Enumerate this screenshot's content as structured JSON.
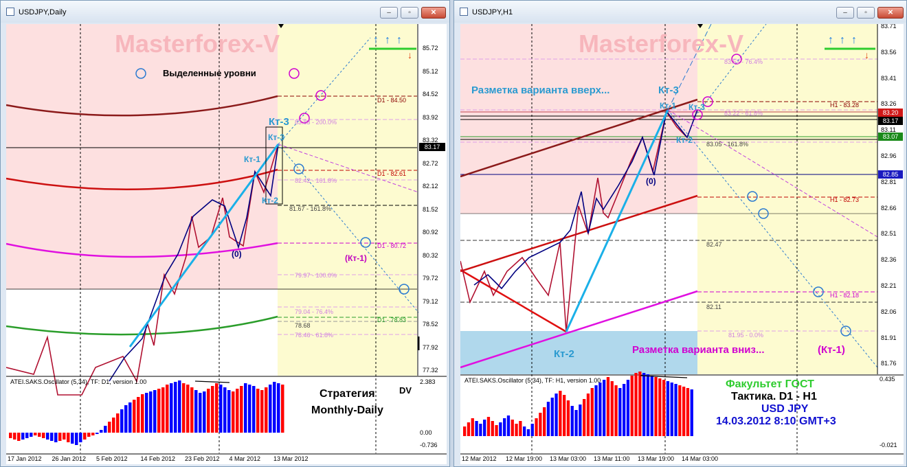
{
  "left": {
    "title": "USDJPY,Daily",
    "watermark": "Masterforex-V",
    "heading": "Выделенные уровни",
    "wave": {
      "kt3": "Кт-3",
      "kt3box": "Кт-3",
      "kt1": "Кт-1",
      "kt2": "Кт-2",
      "zero": "(0)",
      "kt1target": "(Кт-1)"
    },
    "levels": {
      "d1_8450": "D1 - 84.50",
      "d1_8261": "D1 - 82.61",
      "d1_8072": "D1 - 80.72",
      "d1_7883": "D1 - 78.83",
      "fib200": "83.83 - 200.0%",
      "fib1618a": "82.42 - 161.8%",
      "fib1618b": "81.67 - 161.8%",
      "fib100": "79.97 - 100.0%",
      "fib764": "79.04 - 76.4%",
      "lvl7868": "78.68",
      "fib618": "78.46 - 61.8%"
    },
    "price_axis": [
      "85.72",
      "85.12",
      "84.52",
      "83.92",
      "83.32",
      "82.72",
      "82.12",
      "81.52",
      "80.92",
      "80.32",
      "79.72",
      "79.12",
      "78.52",
      "77.92",
      "77.32"
    ],
    "current_price": "83.17",
    "oscillator": {
      "label": "ATEI.SAKS.Oscillator (5,34), TF: D1, version 1.00",
      "max": "2.383",
      "zero": "0.00",
      "min": "-0.736",
      "tag": "DV"
    },
    "strategy": {
      "line1": "Стратегия",
      "line2": "Monthly-Daily"
    },
    "time_axis": [
      "17 Jan 2012",
      "26 Jan 2012",
      "5 Feb 2012",
      "14 Feb 2012",
      "23 Feb 2012",
      "4 Mar 2012",
      "13 Mar 2012"
    ]
  },
  "right": {
    "title": "USDJPY,H1",
    "watermark": "Masterforex-V",
    "markup_up": "Разметка варианта вверх...",
    "markup_down": "Разметка варианта вниз...",
    "wave": {
      "kt3": "Кт-3",
      "kt1": "Кт-1",
      "kt3b": "Кт-3",
      "kt2": "Кт-2",
      "zero": "(0)",
      "kt2low": "Кт-2",
      "kt1target": "(Кт-1)"
    },
    "levels": {
      "fib764": "83.52 - 76.4%",
      "h1_8328": "H1 - 83.28",
      "fib618": "83.22 - 61.8%",
      "fib1618": "83.05 - 161.8%",
      "h1_8273": "H1 - 82.73",
      "lvl8247": "82.47",
      "h1_8218": "H1 - 82.18",
      "lvl8211": "82.11",
      "fib0": "81.95 - 0.0%"
    },
    "price_axis": [
      "83.71",
      "83.56",
      "83.41",
      "83.26",
      "83.11",
      "82.96",
      "82.81",
      "82.66",
      "82.51",
      "82.36",
      "82.21",
      "82.06",
      "81.91",
      "81.76"
    ],
    "price_tags": {
      "red": "83.20",
      "black": "83.17",
      "green": "83.07",
      "blue": "82.85"
    },
    "oscillator": {
      "label": "ATEI.SAKS.Oscillator (5,34), TF: H1, version 1.00",
      "max": "0.435",
      "min": "-0.021"
    },
    "info": {
      "faculty": "Факультет ГОСТ",
      "tactic": "Тактика. D1 - H1",
      "pair": "USD JPY",
      "date": "14.03.2012 8:10 GMT+3"
    },
    "time_axis": [
      "12 Mar 2012",
      "12 Mar 19:00",
      "13 Mar 03:00",
      "13 Mar 11:00",
      "13 Mar 19:00",
      "14 Mar 03:00"
    ]
  },
  "window_buttons": {
    "minimize": "–",
    "restore": "▫",
    "close": "✕"
  },
  "colors": {
    "pink_zone": "#fde0e0",
    "yellow_zone": "#fdfbd0",
    "blue_zone": "#b0d8ec",
    "watermark": "#f7b6bc",
    "oscillator_up": "#ff0000",
    "oscillator_down": "#0000ff"
  }
}
